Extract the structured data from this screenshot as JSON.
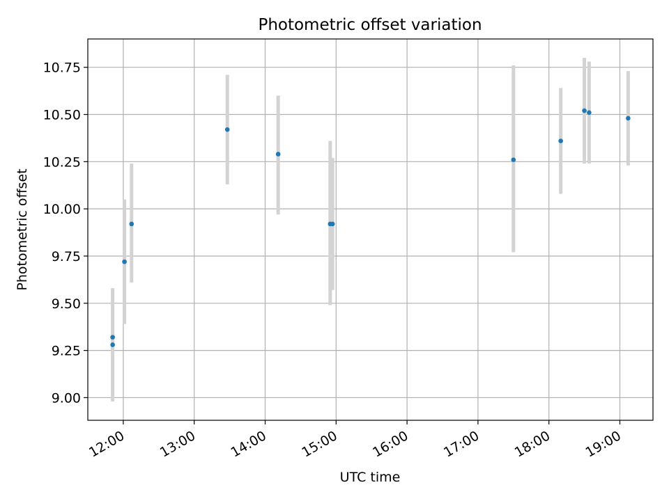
{
  "chart_data": {
    "type": "scatter",
    "title": "Photometric offset variation",
    "xlabel": "UTC time",
    "ylabel": "Photometric offset",
    "x_axis_kind": "time-of-day",
    "xlim": [
      "11:30",
      "19:28"
    ],
    "ylim": [
      8.88,
      10.9
    ],
    "x_ticks": [
      "12:00",
      "13:00",
      "14:00",
      "15:00",
      "16:00",
      "17:00",
      "18:00",
      "19:00"
    ],
    "y_ticks": [
      "9.00",
      "9.25",
      "9.50",
      "9.75",
      "10.00",
      "10.25",
      "10.50",
      "10.75"
    ],
    "x_tick_rotation_deg": 30,
    "grid": true,
    "legend": "none",
    "marker_color": "#1f77b4",
    "errorbar_color": "#d3d3d3",
    "series": [
      {
        "points": [
          {
            "x": "11:51",
            "y": 9.32,
            "yerr_low": 9.32,
            "yerr_high": 9.32
          },
          {
            "x": "11:51",
            "y": 9.28,
            "yerr_low": 8.98,
            "yerr_high": 9.58
          },
          {
            "x": "12:01",
            "y": 9.72,
            "yerr_low": 9.39,
            "yerr_high": 10.05
          },
          {
            "x": "12:07",
            "y": 9.92,
            "yerr_low": 9.61,
            "yerr_high": 10.24
          },
          {
            "x": "13:28",
            "y": 10.42,
            "yerr_low": 10.13,
            "yerr_high": 10.71
          },
          {
            "x": "14:11",
            "y": 10.29,
            "yerr_low": 9.97,
            "yerr_high": 10.6
          },
          {
            "x": "14:55",
            "y": 9.92,
            "yerr_low": 9.49,
            "yerr_high": 10.36
          },
          {
            "x": "14:57",
            "y": 9.92,
            "yerr_low": 9.57,
            "yerr_high": 10.27
          },
          {
            "x": "17:30",
            "y": 10.26,
            "yerr_low": 9.77,
            "yerr_high": 10.76
          },
          {
            "x": "18:10",
            "y": 10.36,
            "yerr_low": 10.08,
            "yerr_high": 10.64
          },
          {
            "x": "18:30",
            "y": 10.52,
            "yerr_low": 10.24,
            "yerr_high": 10.8
          },
          {
            "x": "18:34",
            "y": 10.51,
            "yerr_low": 10.24,
            "yerr_high": 10.78
          },
          {
            "x": "19:07",
            "y": 10.48,
            "yerr_low": 10.23,
            "yerr_high": 10.73
          }
        ]
      }
    ]
  }
}
